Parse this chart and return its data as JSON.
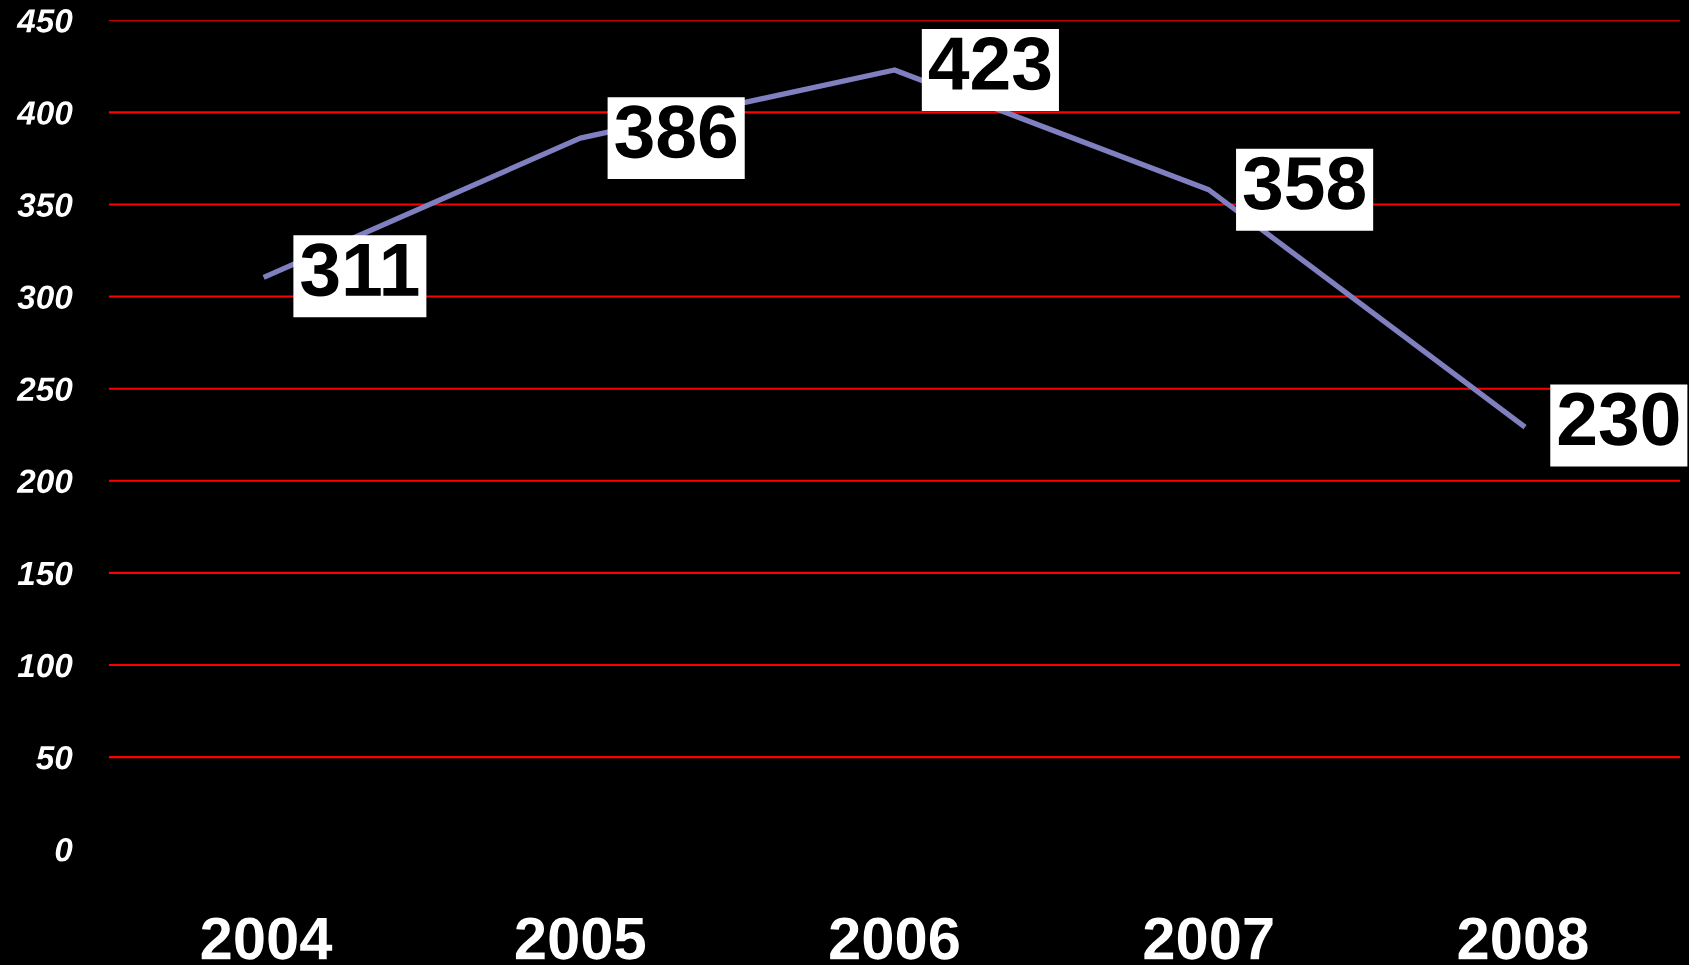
{
  "chart_data": {
    "type": "line",
    "categories": [
      "2004",
      "2005",
      "2006",
      "2007",
      "2008"
    ],
    "series": [
      {
        "color": "#8080c0",
        "values": [
          311,
          386,
          423,
          358,
          230
        ]
      }
    ],
    "ylim": [
      0,
      450
    ],
    "yticks": [
      0,
      50,
      100,
      150,
      200,
      250,
      300,
      350,
      400,
      450
    ],
    "grid": "y",
    "data_labels": true
  }
}
